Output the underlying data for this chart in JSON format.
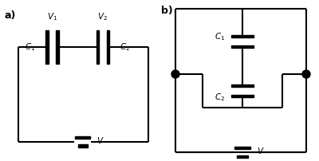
{
  "background_color": "#ffffff",
  "line_color": "#000000",
  "lw": 1.5,
  "label_a": "a)",
  "label_b": "b)",
  "label_fontsize": 9,
  "sub_fontsize": 7.5
}
